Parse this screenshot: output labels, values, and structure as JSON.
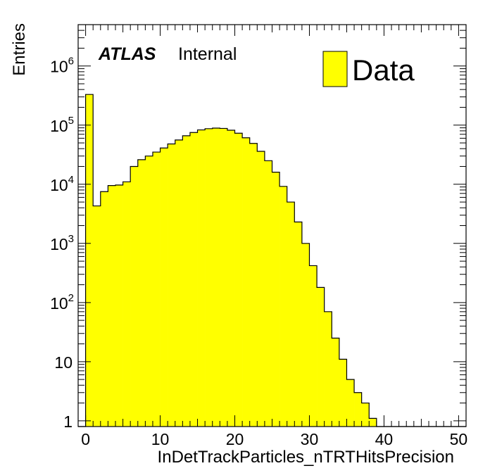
{
  "chart_data": {
    "type": "bar",
    "xlabel": "InDetTrackParticles_nTRTHitsPrecision",
    "ylabel": "Entries",
    "x_bin_edges_start": -1,
    "x_bin_width": 1,
    "xlim": [
      -1,
      51
    ],
    "ylim": [
      0.8,
      5000000
    ],
    "y_scale": "log",
    "x_ticks": [
      0,
      10,
      20,
      30,
      40,
      50
    ],
    "x_tick_labels": [
      "0",
      "10",
      "20",
      "30",
      "40",
      "50"
    ],
    "y_ticks": [
      1,
      10,
      100,
      1000,
      10000,
      100000,
      1000000
    ],
    "y_tick_labels": [
      {
        "base": "1",
        "exp": ""
      },
      {
        "base": "10",
        "exp": ""
      },
      {
        "base": "10",
        "exp": "2"
      },
      {
        "base": "10",
        "exp": "3"
      },
      {
        "base": "10",
        "exp": "4"
      },
      {
        "base": "10",
        "exp": "5"
      },
      {
        "base": "10",
        "exp": "6"
      }
    ],
    "fill_color": "#ffff00",
    "line_color": "#000000",
    "series": [
      {
        "name": "Data",
        "values": [
          0,
          330000,
          4300,
          7500,
          9500,
          9700,
          11000,
          20000,
          26000,
          30000,
          35000,
          41000,
          48000,
          56000,
          66000,
          75000,
          83000,
          87000,
          89000,
          88000,
          82000,
          73000,
          61000,
          49000,
          36000,
          25000,
          16000,
          9200,
          5000,
          2300,
          1000,
          420,
          180,
          70,
          25,
          11,
          5,
          3,
          2,
          1.1,
          0,
          0,
          0,
          0,
          0,
          0,
          0,
          0,
          0,
          0,
          0,
          0
        ]
      }
    ],
    "legend": {
      "position": "top-right",
      "entries": [
        "Data"
      ]
    },
    "annotations": [
      {
        "text": "ATLAS",
        "style": "bold-italic"
      },
      {
        "text": "Internal",
        "style": "normal"
      }
    ],
    "grid": false
  }
}
